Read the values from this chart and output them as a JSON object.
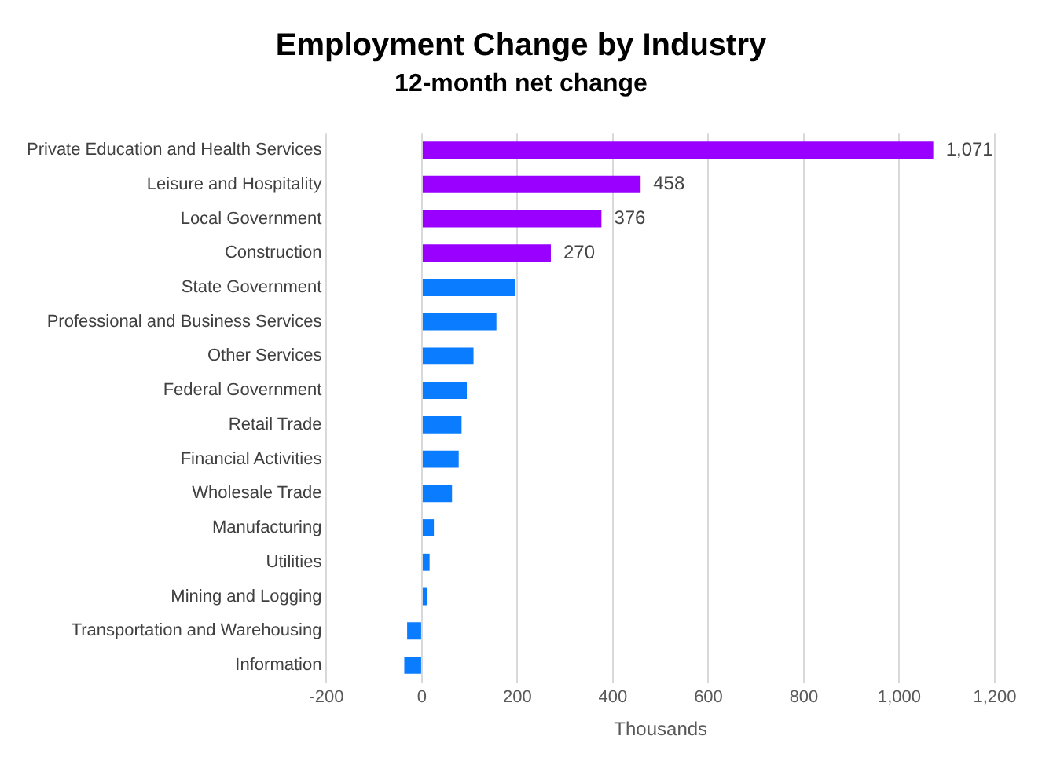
{
  "chart_data": {
    "type": "bar",
    "orientation": "horizontal",
    "title": "Employment Change by Industry",
    "subtitle": "12-month net change",
    "xlabel": "Thousands",
    "categories": [
      "Private Education and Health Services",
      "Leisure and Hospitality",
      "Local Government",
      "Construction",
      "State Government",
      "Professional and Business Services",
      "Other Services",
      "Federal Government",
      "Retail Trade",
      "Financial Activities",
      "Wholesale Trade",
      "Manufacturing",
      "Utilities",
      "Mining and Logging",
      "Transportation and Warehousing",
      "Information"
    ],
    "values": [
      1071,
      458,
      376,
      270,
      195,
      156,
      108,
      94,
      83,
      77,
      63,
      25,
      16,
      10,
      -31,
      -37
    ],
    "colors": [
      "#9900ff",
      "#9900ff",
      "#9900ff",
      "#9900ff",
      "#0a7cff",
      "#0a7cff",
      "#0a7cff",
      "#0a7cff",
      "#0a7cff",
      "#0a7cff",
      "#0a7cff",
      "#0a7cff",
      "#0a7cff",
      "#0a7cff",
      "#0a7cff",
      "#0a7cff"
    ],
    "value_labels": [
      "1,071",
      "458",
      "376",
      "270",
      null,
      null,
      null,
      null,
      null,
      null,
      null,
      null,
      null,
      null,
      null,
      null
    ],
    "xlim": [
      -200,
      1200
    ],
    "xticks": [
      {
        "value": -200,
        "label": "-200"
      },
      0,
      200,
      400,
      600,
      800,
      {
        "value": 1000,
        "label": "1,000"
      },
      {
        "value": 1200,
        "label": "1,200"
      }
    ],
    "grid": "x",
    "legend": false
  }
}
